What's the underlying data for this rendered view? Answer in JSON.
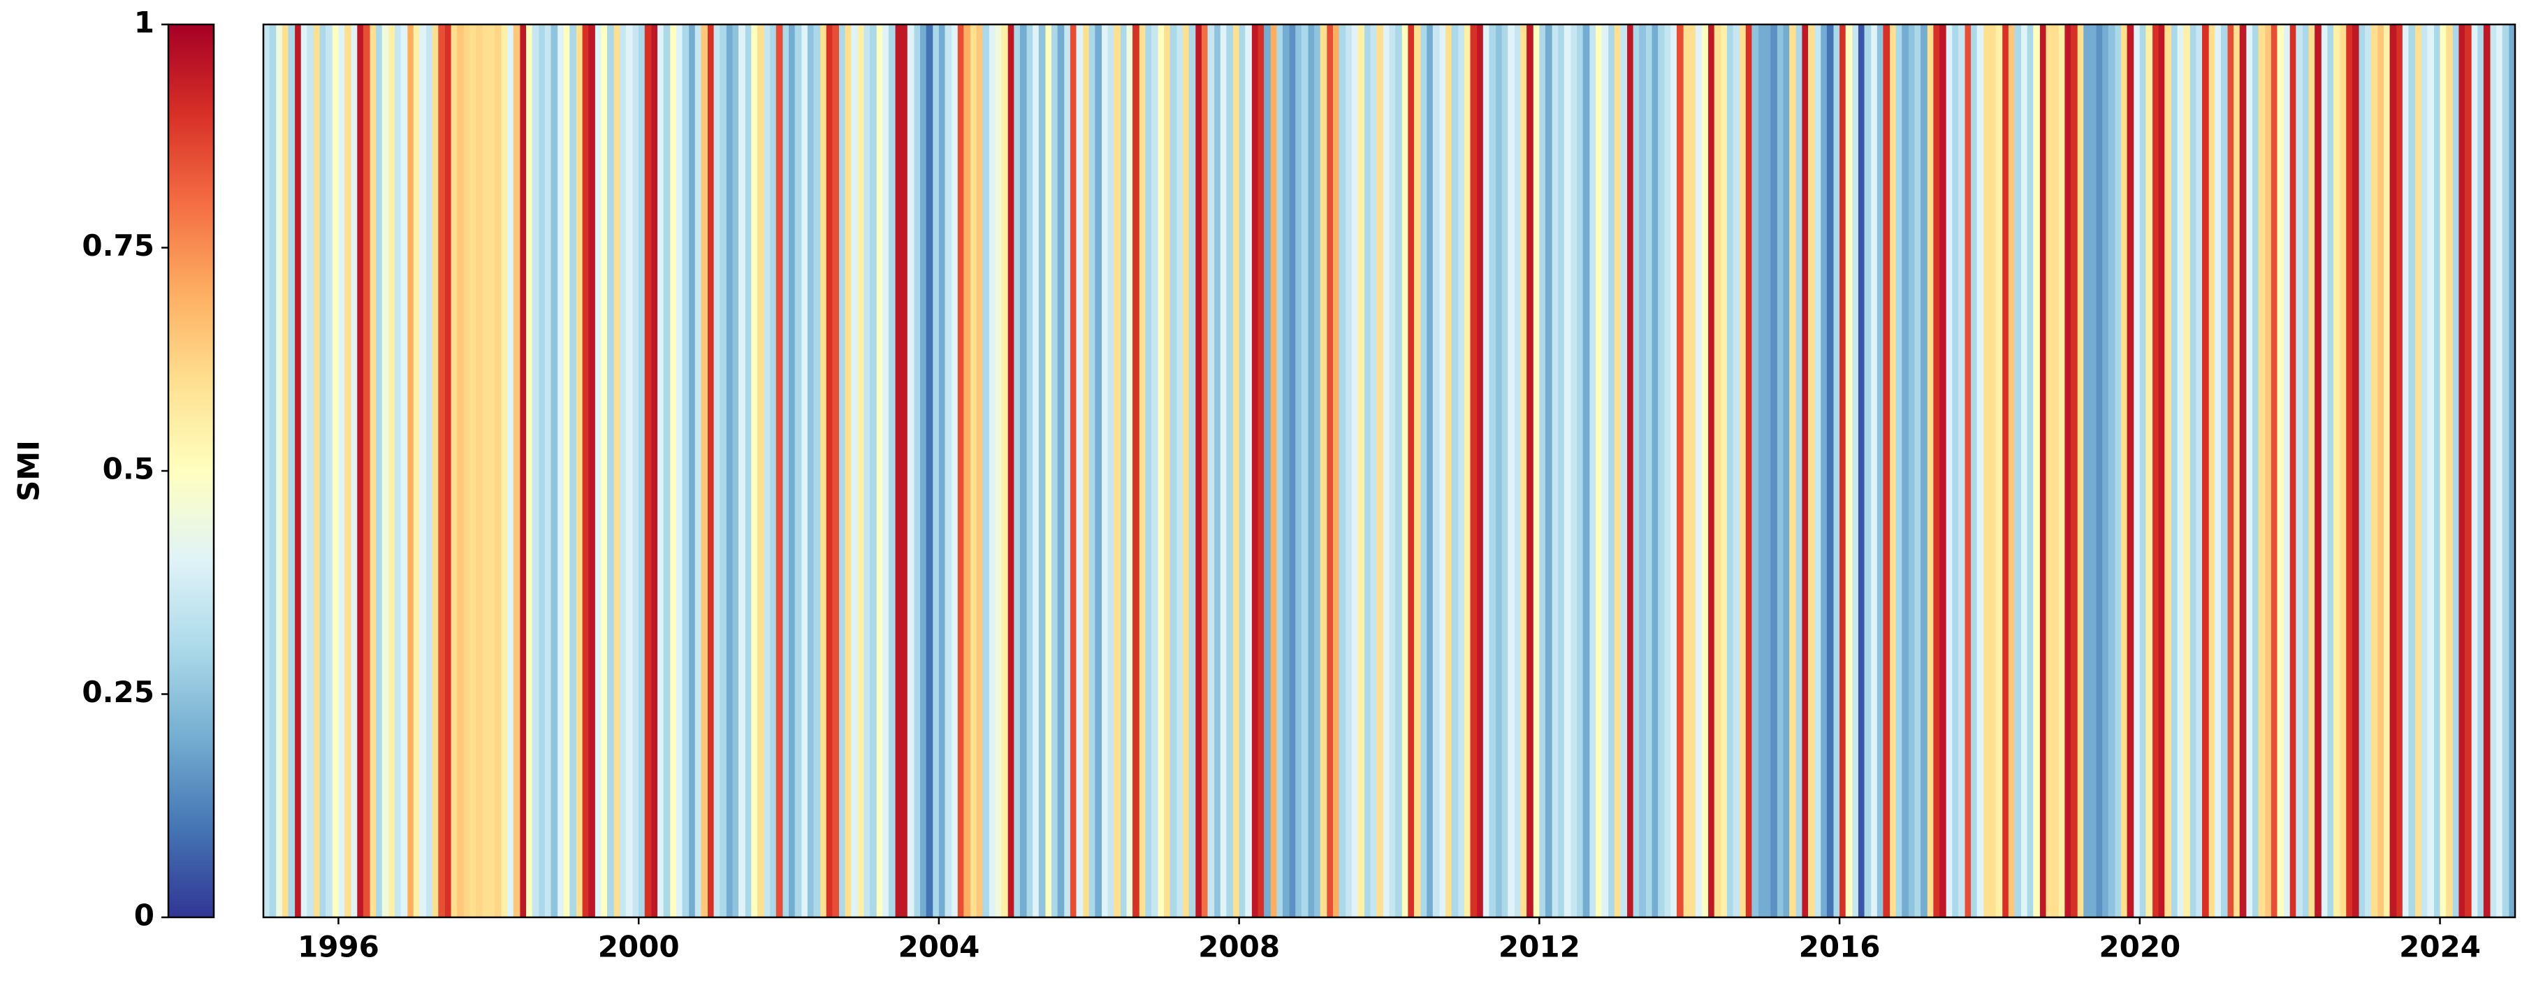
{
  "chart_data": {
    "type": "stripes",
    "colormap": "RdYlBu_r",
    "colorbar": {
      "label": "SMI",
      "lim": [
        0,
        1
      ],
      "ticks": [
        0,
        0.25,
        0.5,
        0.75,
        1
      ]
    },
    "xlim": [
      1995,
      2025
    ],
    "xticks": [
      1996,
      2000,
      2004,
      2008,
      2012,
      2016,
      2020,
      2024
    ],
    "x": [
      1995,
      1995.08,
      1995.17,
      1995.25,
      1995.33,
      1995.42,
      1995.5,
      1995.58,
      1995.67,
      1995.75,
      1995.83,
      1995.92,
      1996,
      1996.08,
      1996.17,
      1996.25,
      1996.33,
      1996.42,
      1996.5,
      1996.58,
      1996.67,
      1996.75,
      1996.83,
      1996.92,
      1997,
      1997.08,
      1997.17,
      1997.25,
      1997.33,
      1997.42,
      1997.5,
      1997.58,
      1997.67,
      1997.75,
      1997.83,
      1997.92,
      1998,
      1998.08,
      1998.17,
      1998.25,
      1998.33,
      1998.42,
      1998.5,
      1998.58,
      1998.67,
      1998.75,
      1998.83,
      1998.92,
      1999,
      1999.08,
      1999.17,
      1999.25,
      1999.33,
      1999.42,
      1999.5,
      1999.58,
      1999.67,
      1999.75,
      1999.83,
      1999.92,
      2000,
      2000.08,
      2000.17,
      2000.25,
      2000.33,
      2000.42,
      2000.5,
      2000.58,
      2000.67,
      2000.75,
      2000.83,
      2000.92,
      2001,
      2001.08,
      2001.17,
      2001.25,
      2001.33,
      2001.42,
      2001.5,
      2001.58,
      2001.67,
      2001.75,
      2001.83,
      2001.92,
      2002,
      2002.08,
      2002.17,
      2002.25,
      2002.33,
      2002.42,
      2002.5,
      2002.58,
      2002.67,
      2002.75,
      2002.83,
      2002.92,
      2003,
      2003.08,
      2003.17,
      2003.25,
      2003.33,
      2003.42,
      2003.5,
      2003.58,
      2003.67,
      2003.75,
      2003.83,
      2003.92,
      2004,
      2004.08,
      2004.17,
      2004.25,
      2004.33,
      2004.42,
      2004.5,
      2004.58,
      2004.67,
      2004.75,
      2004.83,
      2004.92,
      2005,
      2005.08,
      2005.17,
      2005.25,
      2005.33,
      2005.42,
      2005.5,
      2005.58,
      2005.67,
      2005.75,
      2005.83,
      2005.92,
      2006,
      2006.08,
      2006.17,
      2006.25,
      2006.33,
      2006.42,
      2006.5,
      2006.58,
      2006.67,
      2006.75,
      2006.83,
      2006.92,
      2007,
      2007.08,
      2007.17,
      2007.25,
      2007.33,
      2007.42,
      2007.5,
      2007.58,
      2007.67,
      2007.75,
      2007.83,
      2007.92,
      2008,
      2008.08,
      2008.17,
      2008.25,
      2008.33,
      2008.42,
      2008.5,
      2008.58,
      2008.67,
      2008.75,
      2008.83,
      2008.92,
      2009,
      2009.08,
      2009.17,
      2009.25,
      2009.33,
      2009.42,
      2009.5,
      2009.58,
      2009.67,
      2009.75,
      2009.83,
      2009.92,
      2010,
      2010.08,
      2010.17,
      2010.25,
      2010.33,
      2010.42,
      2010.5,
      2010.58,
      2010.67,
      2010.75,
      2010.83,
      2010.92,
      2011,
      2011.08,
      2011.17,
      2011.25,
      2011.33,
      2011.42,
      2011.5,
      2011.58,
      2011.67,
      2011.75,
      2011.83,
      2011.92,
      2012,
      2012.08,
      2012.17,
      2012.25,
      2012.33,
      2012.42,
      2012.5,
      2012.58,
      2012.67,
      2012.75,
      2012.83,
      2012.92,
      2013,
      2013.08,
      2013.17,
      2013.25,
      2013.33,
      2013.42,
      2013.5,
      2013.58,
      2013.67,
      2013.75,
      2013.83,
      2013.92,
      2014,
      2014.08,
      2014.17,
      2014.25,
      2014.33,
      2014.42,
      2014.5,
      2014.58,
      2014.67,
      2014.75,
      2014.83,
      2014.92,
      2015,
      2015.08,
      2015.17,
      2015.25,
      2015.33,
      2015.42,
      2015.5,
      2015.58,
      2015.67,
      2015.75,
      2015.83,
      2015.92,
      2016,
      2016.08,
      2016.17,
      2016.25,
      2016.33,
      2016.42,
      2016.5,
      2016.58,
      2016.67,
      2016.75,
      2016.83,
      2016.92,
      2017,
      2017.08,
      2017.17,
      2017.25,
      2017.33,
      2017.42,
      2017.5,
      2017.58,
      2017.67,
      2017.75,
      2017.83,
      2017.92,
      2018,
      2018.08,
      2018.17,
      2018.25,
      2018.33,
      2018.42,
      2018.5,
      2018.58,
      2018.67,
      2018.75,
      2018.83,
      2018.92,
      2019,
      2019.08,
      2019.17,
      2019.25,
      2019.33,
      2019.42,
      2019.5,
      2019.58,
      2019.67,
      2019.75,
      2019.83,
      2019.92,
      2020,
      2020.08,
      2020.17,
      2020.25,
      2020.33,
      2020.42,
      2020.5,
      2020.58,
      2020.67,
      2020.75,
      2020.83,
      2020.92,
      2021,
      2021.08,
      2021.17,
      2021.25,
      2021.33,
      2021.42,
      2021.5,
      2021.58,
      2021.67,
      2021.75,
      2021.83,
      2021.92,
      2022,
      2022.08,
      2022.17,
      2022.25,
      2022.33,
      2022.42,
      2022.5,
      2022.58,
      2022.67,
      2022.75,
      2022.83,
      2022.92,
      2023,
      2023.08,
      2023.17,
      2023.25,
      2023.33,
      2023.42,
      2023.5,
      2023.58,
      2023.67,
      2023.75,
      2023.83,
      2023.92,
      2024,
      2024.08,
      2024.17,
      2024.25,
      2024.33,
      2024.42,
      2024.5,
      2024.58,
      2024.67,
      2024.75,
      2024.83,
      2024.92
    ],
    "values": [
      0.35,
      0.3,
      0.45,
      0.6,
      0.3,
      0.95,
      0.4,
      0.35,
      0.6,
      0.3,
      0.35,
      0.5,
      0.4,
      0.6,
      0.4,
      0.95,
      0.85,
      0.6,
      0.3,
      0.45,
      0.55,
      0.35,
      0.4,
      0.7,
      0.55,
      0.4,
      0.35,
      0.6,
      0.85,
      0.9,
      0.6,
      0.65,
      0.62,
      0.6,
      0.62,
      0.6,
      0.6,
      0.62,
      0.55,
      0.4,
      0.65,
      0.95,
      0.5,
      0.35,
      0.3,
      0.35,
      0.25,
      0.4,
      0.5,
      0.3,
      0.6,
      0.9,
      0.95,
      0.4,
      0.5,
      0.3,
      0.6,
      0.35,
      0.4,
      0.35,
      0.3,
      0.9,
      0.95,
      0.4,
      0.3,
      0.5,
      0.4,
      0.3,
      0.2,
      0.35,
      0.65,
      0.9,
      0.35,
      0.3,
      0.2,
      0.25,
      0.4,
      0.3,
      0.5,
      0.6,
      0.35,
      0.3,
      0.85,
      0.3,
      0.2,
      0.3,
      0.4,
      0.25,
      0.3,
      0.6,
      0.9,
      0.85,
      0.3,
      0.6,
      0.4,
      0.55,
      0.35,
      0.3,
      0.5,
      0.4,
      0.3,
      0.95,
      0.95,
      0.4,
      0.3,
      0.2,
      0.1,
      0.3,
      0.2,
      0.35,
      0.4,
      0.85,
      0.7,
      0.6,
      0.65,
      0.3,
      0.4,
      0.45,
      0.55,
      0.95,
      0.3,
      0.2,
      0.3,
      0.4,
      0.25,
      0.5,
      0.3,
      0.2,
      0.35,
      0.85,
      0.4,
      0.6,
      0.3,
      0.2,
      0.4,
      0.35,
      0.6,
      0.3,
      0.45,
      0.9,
      0.6,
      0.3,
      0.35,
      0.5,
      0.6,
      0.3,
      0.35,
      0.6,
      0.3,
      0.95,
      0.8,
      0.35,
      0.25,
      0.4,
      0.3,
      0.6,
      0.3,
      0.4,
      0.95,
      0.9,
      0.2,
      0.7,
      0.3,
      0.2,
      0.15,
      0.25,
      0.3,
      0.2,
      0.25,
      0.6,
      0.85,
      0.7,
      0.3,
      0.35,
      0.4,
      0.55,
      0.3,
      0.35,
      0.6,
      0.4,
      0.35,
      0.3,
      0.5,
      0.9,
      0.6,
      0.3,
      0.2,
      0.35,
      0.4,
      0.6,
      0.3,
      0.35,
      0.55,
      0.9,
      0.95,
      0.4,
      0.3,
      0.25,
      0.3,
      0.4,
      0.35,
      0.6,
      0.95,
      0.5,
      0.3,
      0.2,
      0.35,
      0.3,
      0.4,
      0.35,
      0.3,
      0.2,
      0.35,
      0.5,
      0.4,
      0.3,
      0.6,
      0.35,
      0.95,
      0.3,
      0.25,
      0.3,
      0.2,
      0.3,
      0.35,
      0.4,
      0.85,
      0.6,
      0.6,
      0.4,
      0.5,
      0.95,
      0.6,
      0.55,
      0.3,
      0.35,
      0.6,
      0.9,
      0.25,
      0.2,
      0.2,
      0.15,
      0.25,
      0.2,
      0.6,
      0.3,
      0.95,
      0.6,
      0.35,
      0.2,
      0.1,
      0.3,
      0.9,
      0.5,
      0.35,
      0.05,
      0.3,
      0.4,
      0.25,
      0.9,
      0.6,
      0.3,
      0.2,
      0.25,
      0.3,
      0.2,
      0.6,
      0.9,
      0.95,
      0.4,
      0.3,
      0.35,
      0.85,
      0.3,
      0.4,
      0.6,
      0.6,
      0.55,
      0.9,
      0.65,
      0.3,
      0.4,
      0.3,
      0.5,
      0.95,
      0.6,
      0.6,
      0.55,
      0.95,
      0.9,
      0.6,
      0.2,
      0.2,
      0.15,
      0.2,
      0.25,
      0.3,
      0.6,
      0.95,
      0.4,
      0.3,
      0.55,
      0.9,
      0.95,
      0.6,
      0.3,
      0.4,
      0.55,
      0.3,
      0.35,
      0.9,
      0.6,
      0.4,
      0.3,
      0.85,
      0.6,
      0.95,
      0.4,
      0.3,
      0.6,
      0.65,
      0.85,
      0.5,
      0.4,
      0.9,
      0.35,
      0.3,
      0.6,
      0.95,
      0.4,
      0.3,
      0.55,
      0.6,
      0.9,
      0.95,
      0.3,
      0.35,
      0.6,
      0.65,
      0.55,
      0.95,
      0.9,
      0.4,
      0.3,
      0.6,
      0.35,
      0.4,
      0.3,
      0.5,
      0.6,
      0.3,
      0.95,
      0.9,
      0.4,
      0.3,
      0.95,
      0.35,
      0.4,
      0.3,
      0.2
    ]
  }
}
